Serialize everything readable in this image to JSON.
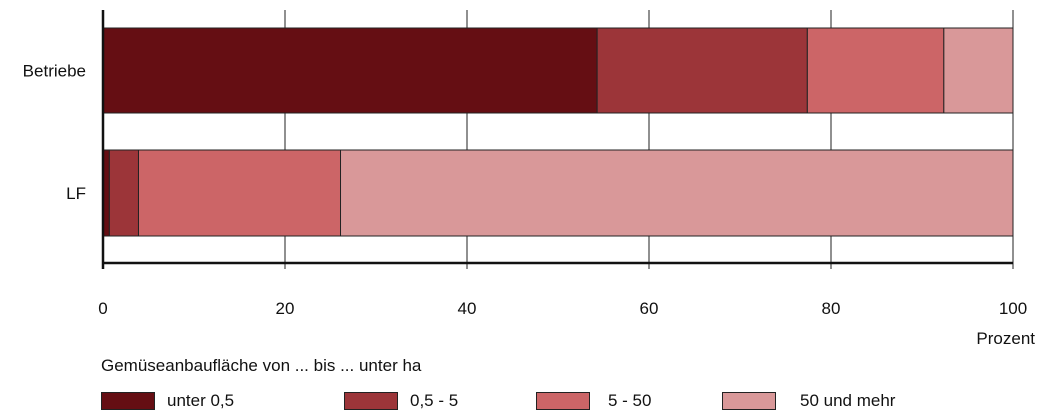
{
  "chart_data": {
    "type": "bar",
    "orientation": "horizontal",
    "stacked": true,
    "categories": [
      "Betriebe",
      "LF"
    ],
    "series": [
      {
        "name": "unter 0,5",
        "color": "#650e13",
        "values": [
          54.3,
          0.7
        ]
      },
      {
        "name": "0,5 - 5",
        "color": "#9c3539",
        "values": [
          23.1,
          3.2
        ]
      },
      {
        "name": "5 - 50",
        "color": "#cc6567",
        "values": [
          15.0,
          22.2
        ]
      },
      {
        "name": "50 und mehr",
        "color": "#d99899",
        "values": [
          7.6,
          73.9
        ]
      }
    ],
    "xlim": [
      0,
      100
    ],
    "xticks": [
      0,
      20,
      40,
      60,
      80,
      100
    ],
    "xlabel": "Prozent",
    "grid": true,
    "legend_title": "Gemüseanbaufläche von ... bis ... unter ha",
    "legend_position": "bottom"
  }
}
